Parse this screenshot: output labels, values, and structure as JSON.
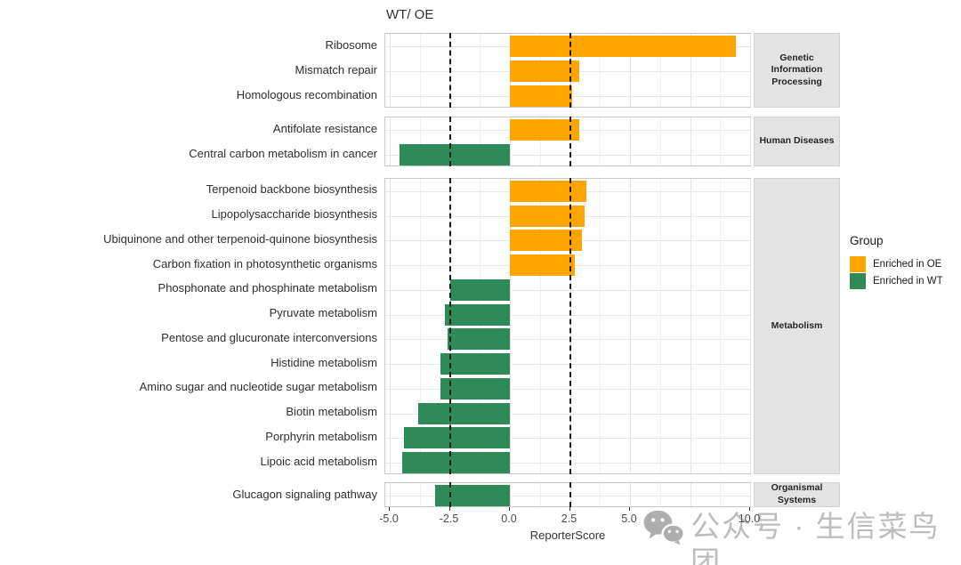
{
  "chart_data": {
    "type": "bar",
    "orientation": "horizontal",
    "title": "WT/ OE",
    "xlabel": "ReporterScore",
    "x_tick_labels": [
      "-5.0",
      "-2.5",
      "0.0",
      "2.5",
      "5.0",
      "10.0"
    ],
    "x_tick_values": [
      -5,
      -2.5,
      0,
      2.5,
      5,
      10
    ],
    "xlim": [
      -5.2,
      10.1
    ],
    "dashed_reference_lines": [
      -2.5,
      2.5
    ],
    "gridlines": {
      "major": [
        -5,
        -2.5,
        0,
        2.5,
        5,
        7.5,
        10
      ],
      "minor": [
        -3.75,
        -1.25,
        1.25,
        3.75,
        6.25,
        8.75
      ]
    },
    "legend": {
      "title": "Group",
      "position": "right",
      "entries": [
        {
          "label": "Enriched in OE",
          "group": "OE",
          "color": "#FFA500"
        },
        {
          "label": "Enriched in WT",
          "group": "WT",
          "color": "#2E8B57"
        }
      ]
    },
    "colors": {
      "OE": "#FFA500",
      "WT": "#2E8B57"
    },
    "facets": [
      {
        "label": "Genetic Information Processing",
        "bars": [
          {
            "name": "Ribosome",
            "value": 9.4,
            "group": "OE"
          },
          {
            "name": "Mismatch repair",
            "value": 2.9,
            "group": "OE"
          },
          {
            "name": "Homologous recombination",
            "value": 2.6,
            "group": "OE"
          }
        ]
      },
      {
        "label": "Human Diseases",
        "bars": [
          {
            "name": "Antifolate resistance",
            "value": 2.9,
            "group": "OE"
          },
          {
            "name": "Central carbon metabolism in cancer",
            "value": -4.6,
            "group": "WT"
          }
        ]
      },
      {
        "label": "Metabolism",
        "bars": [
          {
            "name": "Terpenoid backbone biosynthesis",
            "value": 3.2,
            "group": "OE"
          },
          {
            "name": "Lipopolysaccharide biosynthesis",
            "value": 3.1,
            "group": "OE"
          },
          {
            "name": "Ubiquinone and other terpenoid-quinone biosynthesis",
            "value": 3.0,
            "group": "OE"
          },
          {
            "name": "Carbon fixation in photosynthetic organisms",
            "value": 2.7,
            "group": "OE"
          },
          {
            "name": "Phosphonate and phosphinate metabolism",
            "value": -2.5,
            "group": "WT"
          },
          {
            "name": "Pyruvate metabolism",
            "value": -2.7,
            "group": "WT"
          },
          {
            "name": "Pentose and glucuronate interconversions",
            "value": -2.6,
            "group": "WT"
          },
          {
            "name": "Histidine metabolism",
            "value": -2.9,
            "group": "WT"
          },
          {
            "name": "Amino sugar and nucleotide sugar metabolism",
            "value": -2.9,
            "group": "WT"
          },
          {
            "name": "Biotin metabolism",
            "value": -3.8,
            "group": "WT"
          },
          {
            "name": "Porphyrin metabolism",
            "value": -4.4,
            "group": "WT"
          },
          {
            "name": "Lipoic acid metabolism",
            "value": -4.5,
            "group": "WT"
          }
        ]
      },
      {
        "label": "Organismal Systems",
        "bars": [
          {
            "name": "Glucagon signaling pathway",
            "value": -3.1,
            "group": "WT"
          }
        ]
      }
    ]
  },
  "watermark": {
    "icon": "wechat-icon",
    "text": "公众号 · 生信菜鸟团"
  }
}
